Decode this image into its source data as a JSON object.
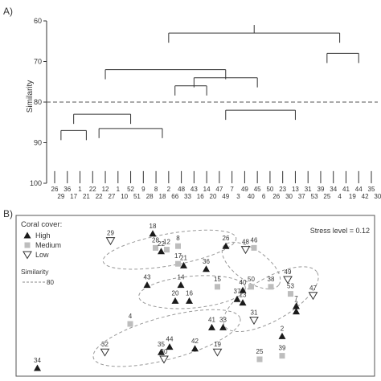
{
  "panels": {
    "a": "A)",
    "b": "B)"
  },
  "chart_data": [
    {
      "type": "dendrogram",
      "ylabel": "Similarity",
      "ylim": [
        60,
        100
      ],
      "yticks": [
        60,
        70,
        80,
        90,
        100
      ],
      "cut_level": 80,
      "leaves_top_row": [
        "26",
        "36",
        "1",
        "22",
        "12",
        "1",
        "52",
        "9",
        "8",
        "2",
        "48",
        "43",
        "14",
        "47",
        "7",
        "49",
        "45",
        "50",
        "23",
        "13",
        "31",
        "39",
        "34",
        "41",
        "44",
        "35"
      ],
      "leaves_bottom_row": [
        "29",
        "17",
        "21",
        "22",
        "27",
        "10",
        "51",
        "28",
        "18",
        "66",
        "33",
        "16",
        "20",
        "49",
        "3",
        "40",
        "6",
        "26",
        "30",
        "37",
        "53",
        "25",
        "4",
        "19",
        "42",
        "30"
      ],
      "merges": [
        {
          "left": 0.5,
          "right": 2.5,
          "h": 87
        },
        {
          "left": 3.5,
          "right": 8.5,
          "h": 86.5
        },
        {
          "left": 1.5,
          "right": 6,
          "h": 83
        },
        {
          "left": 9.5,
          "right": 12,
          "h": 76
        },
        {
          "left": 13.5,
          "right": 19,
          "h": 82
        },
        {
          "left": 11,
          "right": 16,
          "h": 74
        },
        {
          "left": 4,
          "right": 13.5,
          "h": 72
        },
        {
          "left": 21.5,
          "right": 24,
          "h": 68
        },
        {
          "left": 9,
          "right": 22.5,
          "h": 63
        }
      ]
    },
    {
      "type": "scatter",
      "title": "Coral cover:",
      "stress_label": "Stress level = 0.12",
      "legend": [
        {
          "label": "High",
          "marker": "triangle-filled",
          "color": "#1a1a1a"
        },
        {
          "label": "Medium",
          "marker": "square",
          "color": "#bdbdbd"
        },
        {
          "label": "Low",
          "marker": "triangle-open",
          "color": "#333333"
        }
      ],
      "similarity_label": "Similarity",
      "similarity_value": "80",
      "points": [
        {
          "id": "18",
          "x": 0.0,
          "y": 3.6,
          "cover": "high"
        },
        {
          "id": "29",
          "x": -1.5,
          "y": 3.2,
          "cover": "low"
        },
        {
          "id": "28",
          "x": 0.1,
          "y": 2.8,
          "cover": "medium"
        },
        {
          "id": "22",
          "x": 0.3,
          "y": 2.6,
          "cover": "high"
        },
        {
          "id": "12",
          "x": 0.5,
          "y": 2.7,
          "cover": "medium"
        },
        {
          "id": "8",
          "x": 0.9,
          "y": 2.9,
          "cover": "medium"
        },
        {
          "id": "26",
          "x": 2.6,
          "y": 2.9,
          "cover": "high"
        },
        {
          "id": "48",
          "x": 3.3,
          "y": 2.7,
          "cover": "low"
        },
        {
          "id": "46",
          "x": 3.6,
          "y": 2.8,
          "cover": "medium"
        },
        {
          "id": "17",
          "x": 0.9,
          "y": 1.9,
          "cover": "medium"
        },
        {
          "id": "21",
          "x": 1.1,
          "y": 1.8,
          "cover": "high"
        },
        {
          "id": "36",
          "x": 1.9,
          "y": 1.6,
          "cover": "high"
        },
        {
          "id": "49",
          "x": 4.8,
          "y": 1.0,
          "cover": "low"
        },
        {
          "id": "38",
          "x": 4.2,
          "y": 0.6,
          "cover": "medium"
        },
        {
          "id": "43",
          "x": -0.2,
          "y": 0.7,
          "cover": "high"
        },
        {
          "id": "14",
          "x": 1.0,
          "y": 0.7,
          "cover": "high"
        },
        {
          "id": "15",
          "x": 2.3,
          "y": 0.6,
          "cover": "medium"
        },
        {
          "id": "40",
          "x": 3.2,
          "y": 0.4,
          "cover": "high"
        },
        {
          "id": "50",
          "x": 3.5,
          "y": 0.6,
          "cover": "medium"
        },
        {
          "id": "53",
          "x": 4.9,
          "y": 0.2,
          "cover": "medium"
        },
        {
          "id": "47",
          "x": 5.7,
          "y": 0.1,
          "cover": "low"
        },
        {
          "id": "37",
          "x": 3.0,
          "y": -0.1,
          "cover": "high"
        },
        {
          "id": "13",
          "x": 3.2,
          "y": -0.3,
          "cover": "high"
        },
        {
          "id": "20",
          "x": 0.8,
          "y": -0.2,
          "cover": "high"
        },
        {
          "id": "16",
          "x": 1.3,
          "y": -0.2,
          "cover": "high"
        },
        {
          "id": "7",
          "x": 5.1,
          "y": -0.5,
          "cover": "high"
        },
        {
          "id": "3",
          "x": 5.1,
          "y": -0.8,
          "cover": "high"
        },
        {
          "id": "31",
          "x": 3.6,
          "y": -1.3,
          "cover": "low"
        },
        {
          "id": "4",
          "x": -0.8,
          "y": -1.5,
          "cover": "medium"
        },
        {
          "id": "41",
          "x": 2.1,
          "y": -1.7,
          "cover": "high"
        },
        {
          "id": "33",
          "x": 2.5,
          "y": -1.7,
          "cover": "high"
        },
        {
          "id": "2",
          "x": 4.6,
          "y": -2.2,
          "cover": "high"
        },
        {
          "id": "44",
          "x": 0.6,
          "y": -2.8,
          "cover": "high"
        },
        {
          "id": "35",
          "x": 0.3,
          "y": -3.1,
          "cover": "high"
        },
        {
          "id": "42",
          "x": 1.5,
          "y": -2.9,
          "cover": "high"
        },
        {
          "id": "19",
          "x": 2.3,
          "y": -3.1,
          "cover": "low"
        },
        {
          "id": "32",
          "x": -1.7,
          "y": -3.1,
          "cover": "low"
        },
        {
          "id": "30",
          "x": 0.4,
          "y": -3.5,
          "cover": "low"
        },
        {
          "id": "25",
          "x": 3.8,
          "y": -3.5,
          "cover": "medium"
        },
        {
          "id": "39",
          "x": 4.6,
          "y": -3.3,
          "cover": "medium"
        },
        {
          "id": "34",
          "x": -4.1,
          "y": -4.0,
          "cover": "high"
        }
      ],
      "clusters": [
        {
          "cx": 0.6,
          "cy": 2.7,
          "rx": 2.4,
          "ry": 0.9,
          "rot": -10
        },
        {
          "cx": 1.4,
          "cy": 0.3,
          "rx": 1.9,
          "ry": 0.9,
          "rot": -5
        },
        {
          "cx": 3.5,
          "cy": 1.8,
          "rx": 1.2,
          "ry": 0.9,
          "rot": 35
        },
        {
          "cx": 4.2,
          "cy": -0.1,
          "rx": 1.9,
          "ry": 1.2,
          "rot": -30
        },
        {
          "cx": 0.5,
          "cy": -2.3,
          "rx": 2.7,
          "ry": 1.2,
          "rot": -15
        }
      ]
    }
  ]
}
